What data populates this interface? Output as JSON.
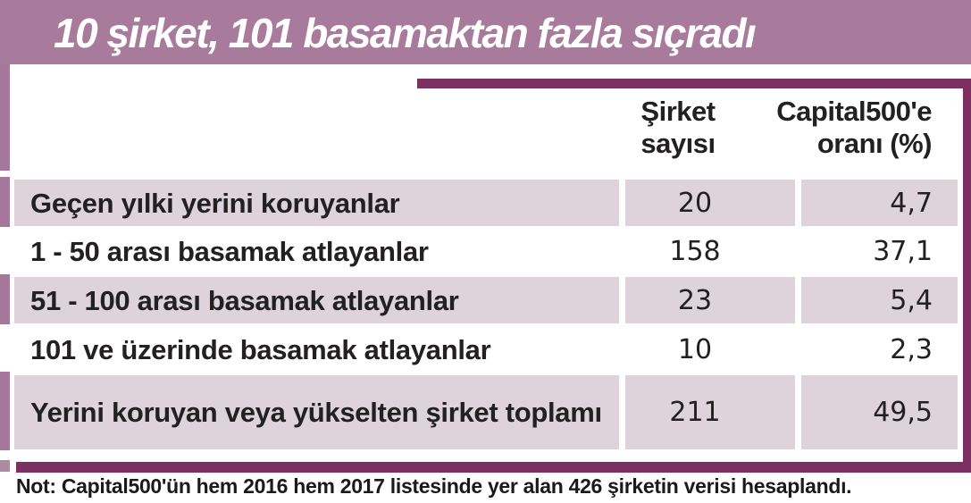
{
  "chart_data": {
    "type": "table",
    "title": "10 şirket, 101 basamaktan fazla sıçradı",
    "columns": [
      "",
      "Şirket sayısı",
      "Capital500'e oranı (%)"
    ],
    "rows": [
      {
        "label": "Geçen yılki yerini koruyanlar",
        "count": "20",
        "ratio_pct": "4,7"
      },
      {
        "label": "1 - 50 arası basamak atlayanlar",
        "count": "158",
        "ratio_pct": "37,1"
      },
      {
        "label": "51 - 100 arası basamak atlayanlar",
        "count": "23",
        "ratio_pct": "5,4"
      },
      {
        "label": "101 ve üzerinde basamak atlayanlar",
        "count": "10",
        "ratio_pct": "2,3"
      },
      {
        "label": "Yerini koruyan veya yükselten şirket toplamı",
        "count": "211",
        "ratio_pct": "49,5"
      }
    ],
    "note": "Not: Capital500'ün hem 2016 hem 2017 listesinde yer alan 426 şirketin verisi hesaplandı."
  },
  "header": {
    "count_col": {
      "line1": "Şirket",
      "line2": "sayısı"
    },
    "ratio_col": {
      "line1": "Capital500'e",
      "line2": "oranı (%)"
    }
  },
  "colors": {
    "title_band": "#a87b9d",
    "accent_dark": "#7c3062",
    "row_shade": "#ded2db",
    "left_strip": "#a5779b",
    "text": "#232021",
    "title_text": "#ffffff"
  }
}
